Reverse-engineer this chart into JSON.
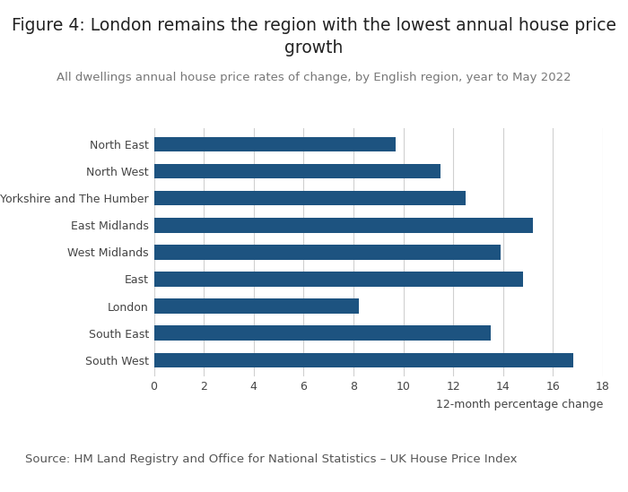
{
  "title": "Figure 4: London remains the region with the lowest annual house price\ngrowth",
  "subtitle": "All dwellings annual house price rates of change, by English region, year to May 2022",
  "source": "Source: HM Land Registry and Office for National Statistics – UK House Price Index",
  "xlabel": "12-month percentage change",
  "categories": [
    "North East",
    "North West",
    "Yorkshire and The Humber",
    "East Midlands",
    "West Midlands",
    "East",
    "London",
    "South East",
    "South West"
  ],
  "values": [
    9.7,
    11.5,
    12.5,
    15.2,
    13.9,
    14.8,
    8.2,
    13.5,
    16.8
  ],
  "bar_color": "#1d5380",
  "xlim": [
    0,
    18
  ],
  "xticks": [
    0,
    2,
    4,
    6,
    8,
    10,
    12,
    14,
    16,
    18
  ],
  "background_color": "#ffffff",
  "title_fontsize": 13.5,
  "subtitle_fontsize": 9.5,
  "source_fontsize": 9.5,
  "bar_height": 0.55,
  "grid_color": "#d0d0d0"
}
